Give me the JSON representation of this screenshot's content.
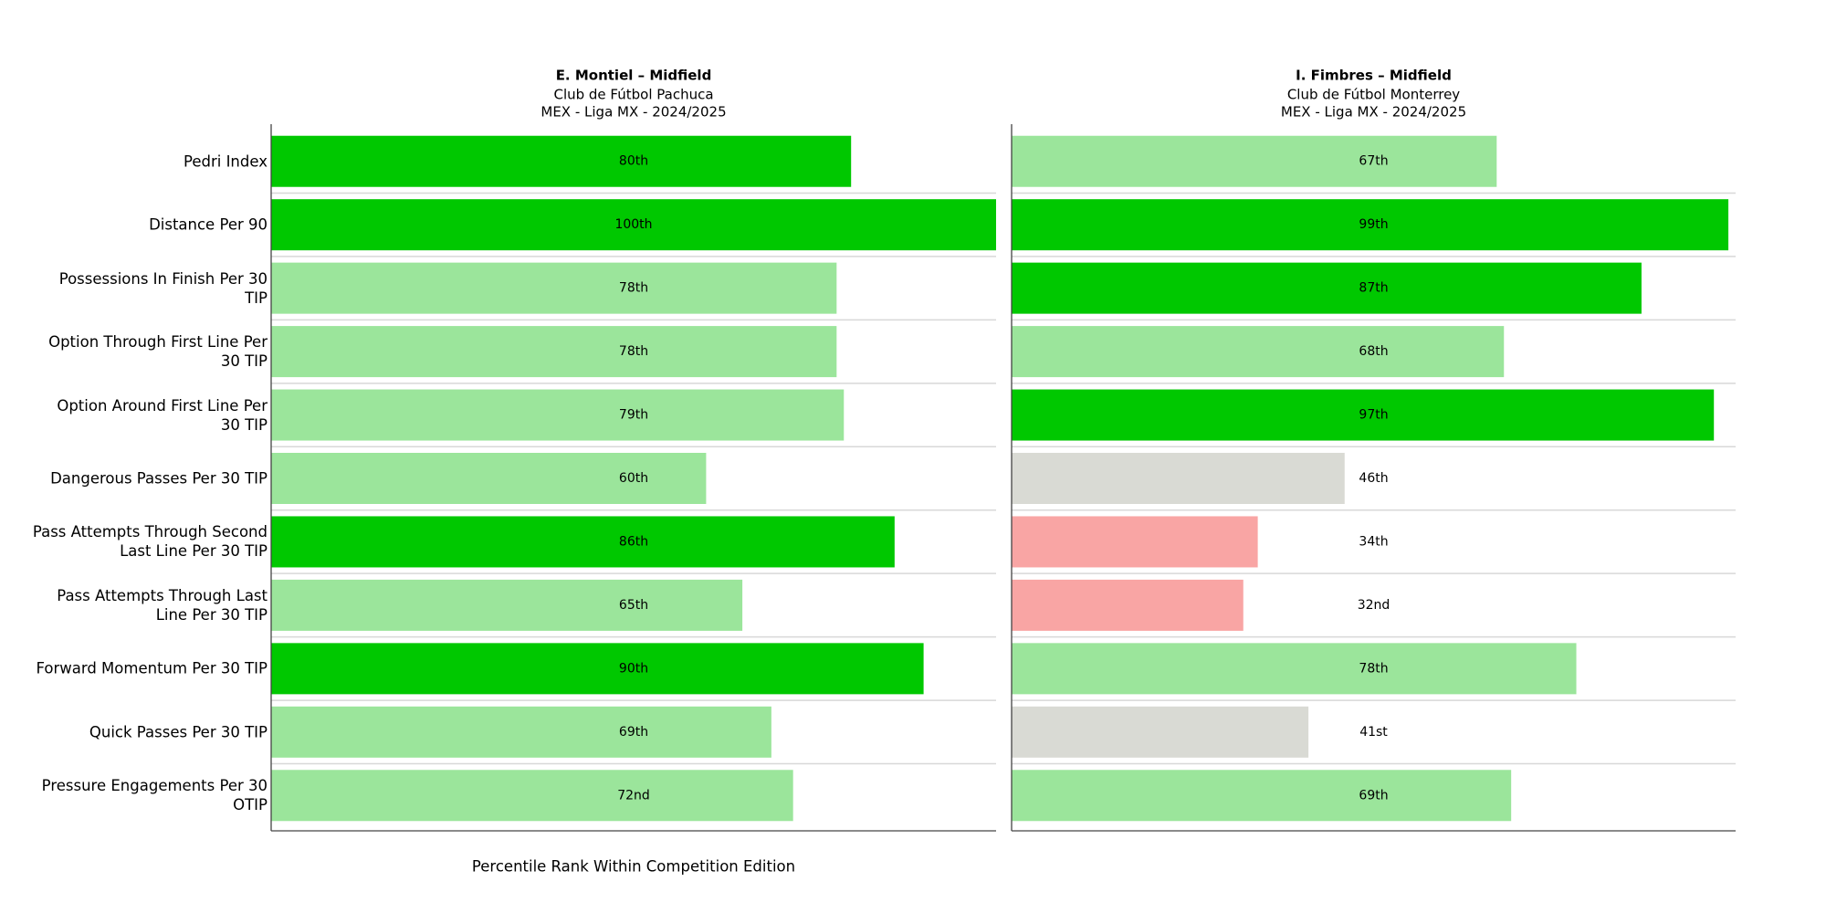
{
  "chart_data": {
    "type": "bar",
    "orientation": "horizontal",
    "categories": [
      "Pedri Index",
      "Distance Per 90",
      "Possessions In Finish Per 30\nTIP",
      "Option Through First Line Per\n30 TIP",
      "Option Around First Line Per\n30 TIP",
      "Dangerous Passes Per 30 TIP",
      "Pass Attempts Through Second\nLast Line Per 30 TIP",
      "Pass Attempts Through Last\nLine Per 30 TIP",
      "Forward Momentum Per 30 TIP",
      "Quick Passes Per 30 TIP",
      "Pressure Engagements Per 30\nOTIP"
    ],
    "xlabel": "Percentile Rank Within Competition Edition",
    "xlim": [
      0,
      100
    ],
    "series": [
      {
        "title": "E. Montiel – Midfield",
        "subtitle": [
          "Club de Fútbol Pachuca",
          "MEX - Liga MX - 2024/2025"
        ],
        "values": [
          80,
          100,
          78,
          78,
          79,
          60,
          86,
          65,
          90,
          69,
          72
        ],
        "value_labels": [
          "80th",
          "100th",
          "78th",
          "78th",
          "79th",
          "60th",
          "86th",
          "65th",
          "90th",
          "69th",
          "72nd"
        ],
        "colors": [
          "#00c800",
          "#00c800",
          "#9be59b",
          "#9be59b",
          "#9be59b",
          "#9be59b",
          "#00c800",
          "#9be59b",
          "#00c800",
          "#9be59b",
          "#9be59b"
        ]
      },
      {
        "title": "I. Fimbres – Midfield",
        "subtitle": [
          "Club de Fútbol Monterrey",
          "MEX - Liga MX - 2024/2025"
        ],
        "values": [
          67,
          99,
          87,
          68,
          97,
          46,
          34,
          32,
          78,
          41,
          69
        ],
        "value_labels": [
          "67th",
          "99th",
          "87th",
          "68th",
          "97th",
          "46th",
          "34th",
          "32nd",
          "78th",
          "41st",
          "69th"
        ],
        "colors": [
          "#9be59b",
          "#00c800",
          "#00c800",
          "#9be59b",
          "#00c800",
          "#d9dad4",
          "#f9a5a4",
          "#f9a5a4",
          "#9be59b",
          "#d9dad4",
          "#9be59b"
        ]
      }
    ]
  }
}
